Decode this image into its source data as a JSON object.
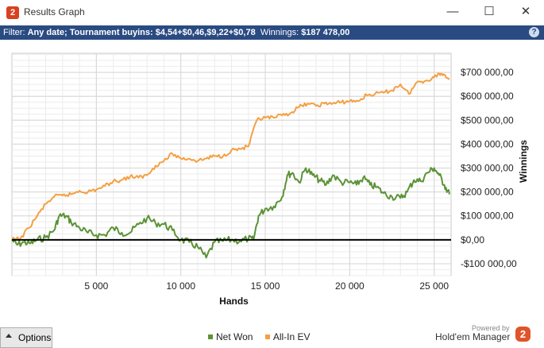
{
  "window": {
    "title": "Results Graph",
    "icon": "hm2-app-icon",
    "controls": {
      "minimize": "—",
      "maximize": "☐",
      "close": "✕"
    }
  },
  "filter": {
    "prefix": "Filter: ",
    "criteria": "Any date; Tournament buyins: $4,54+$0,46,$9,22+$0,78",
    "winnings_label": "  Winnings: ",
    "winnings_value": "$187 478,00",
    "help": "?"
  },
  "colors": {
    "net_won": "#5c9336",
    "all_in_ev": "#f4a042",
    "filter_bar": "#2a4b82",
    "zero_line": "#000000"
  },
  "chart_data": {
    "type": "line",
    "xlabel": "Hands",
    "ylabel": "Winnings",
    "xlim": [
      0,
      26000
    ],
    "ylim": [
      -150000,
      780000
    ],
    "x_ticks": [
      5000,
      10000,
      15000,
      20000,
      25000
    ],
    "x_tick_labels": [
      "5 000",
      "10 000",
      "15 000",
      "20 000",
      "25 000"
    ],
    "y_ticks": [
      -100000,
      0,
      100000,
      200000,
      300000,
      400000,
      500000,
      600000,
      700000
    ],
    "y_tick_labels": [
      "-$100 000,00",
      "$0,00",
      "$100 000,00",
      "$200 000,00",
      "$300 000,00",
      "$400 000,00",
      "$500 000,00",
      "$600 000,00",
      "$700 000,00"
    ],
    "grid": true,
    "legend_position": "bottom",
    "series": [
      {
        "name": "Net Won",
        "x": [
          0,
          300,
          700,
          1100,
          1500,
          2000,
          2500,
          2800,
          3200,
          3500,
          4000,
          4500,
          5000,
          5500,
          6000,
          6500,
          7000,
          7500,
          8000,
          8500,
          9000,
          9500,
          10000,
          10500,
          11000,
          11500,
          12000,
          12500,
          13000,
          13500,
          14000,
          14300,
          14600,
          15000,
          15500,
          16000,
          16300,
          16600,
          17000,
          17400,
          17800,
          18200,
          18600,
          19000,
          19500,
          20000,
          20400,
          20800,
          21200,
          21600,
          22000,
          22500,
          23000,
          23400,
          23800,
          24200,
          24600,
          25000,
          25300,
          25600,
          25900
        ],
        "values": [
          0,
          -20000,
          -10000,
          -15000,
          0,
          10000,
          40000,
          100000,
          100000,
          75000,
          50000,
          30000,
          20000,
          20000,
          50000,
          30000,
          30000,
          65000,
          90000,
          70000,
          65000,
          40000,
          0,
          -10000,
          -30000,
          -75000,
          -10000,
          -5000,
          0,
          -5000,
          5000,
          0,
          100000,
          130000,
          140000,
          180000,
          270000,
          280000,
          240000,
          300000,
          270000,
          250000,
          230000,
          270000,
          240000,
          240000,
          230000,
          260000,
          230000,
          220000,
          195000,
          180000,
          175000,
          200000,
          250000,
          245000,
          280000,
          300000,
          270000,
          230000,
          190000
        ]
      },
      {
        "name": "All-In EV",
        "x": [
          0,
          500,
          1000,
          1500,
          2000,
          2500,
          3000,
          3500,
          4000,
          4500,
          5000,
          5500,
          6000,
          6500,
          7000,
          7500,
          8000,
          8500,
          9000,
          9500,
          10000,
          10500,
          11000,
          11500,
          12000,
          12500,
          13000,
          13500,
          14000,
          14500,
          15000,
          15500,
          16000,
          16500,
          17000,
          17500,
          18000,
          18500,
          19000,
          19500,
          20000,
          20500,
          21000,
          21500,
          22000,
          22500,
          23000,
          23500,
          24000,
          24500,
          25000,
          25300,
          25600,
          25900
        ],
        "values": [
          0,
          5000,
          50000,
          100000,
          150000,
          180000,
          185000,
          190000,
          205000,
          200000,
          210000,
          225000,
          245000,
          250000,
          265000,
          260000,
          270000,
          310000,
          330000,
          360000,
          340000,
          340000,
          330000,
          340000,
          350000,
          350000,
          375000,
          380000,
          390000,
          500000,
          510000,
          510000,
          520000,
          530000,
          555000,
          570000,
          560000,
          570000,
          570000,
          575000,
          580000,
          580000,
          605000,
          610000,
          615000,
          625000,
          650000,
          610000,
          660000,
          665000,
          680000,
          695000,
          690000,
          675000
        ]
      }
    ]
  },
  "options_button": {
    "label": "Options"
  },
  "legend": {
    "items": [
      {
        "label": "Net Won"
      },
      {
        "label": "All-In EV"
      }
    ]
  },
  "branding": {
    "powered_by": "Powered by",
    "product": "Hold'em Manager",
    "logo_glyph": "2"
  }
}
